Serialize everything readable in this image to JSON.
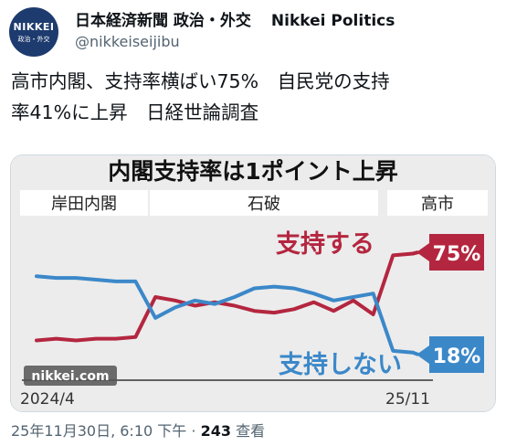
{
  "account": {
    "avatar_line1": "NIKKEI",
    "avatar_line2": "政治・外交",
    "display_name": "日本経済新聞 政治・外交",
    "display_name_en": "Nikkei Politics",
    "handle": "@nikkeiseijibu"
  },
  "tweet": {
    "text": "高市内閣、支持率横ばい75%　自民党の支持\n率41%に上昇　日経世論調査"
  },
  "meta": {
    "timestamp": "25年11月30日, 6:10 下午",
    "separator": "·",
    "views": "243",
    "views_label": "查看"
  },
  "chart_data": {
    "type": "line",
    "title": "内閣支持率は1ポイント上昇",
    "periods": [
      "岸田内閣",
      "石破",
      "高市"
    ],
    "x_start_label": "2024/4",
    "x_end_label": "25/11",
    "watermark": "nikkei.com",
    "ylim": [
      0,
      100
    ],
    "series": [
      {
        "name": "支持する",
        "color": "#b4263f",
        "end_label": "75%",
        "values": [
          25,
          26,
          25,
          26,
          26,
          27,
          50,
          48,
          45,
          47,
          45,
          42,
          41,
          43,
          47,
          42,
          48,
          40,
          74,
          75
        ]
      },
      {
        "name": "支持しない",
        "color": "#3b88c9",
        "end_label": "18%",
        "values": [
          62,
          61,
          61,
          60,
          59,
          59,
          38,
          44,
          48,
          46,
          50,
          55,
          56,
          55,
          52,
          48,
          50,
          52,
          19,
          18
        ]
      }
    ]
  }
}
